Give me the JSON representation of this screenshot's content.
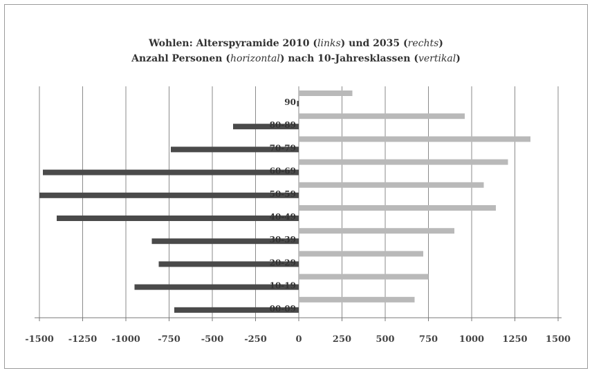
{
  "title": {
    "line1_a": "Wohlen: Alterspyramide 2010 (",
    "line1_b": "links",
    "line1_c": ") und 2035 (",
    "line1_d": "rechts",
    "line1_e": ")",
    "line2_a": "Anzahl Personen (",
    "line2_b": "horizontal",
    "line2_c": ") nach 10-Jahresklassen (",
    "line2_d": "vertikal",
    "line2_e": ")"
  },
  "colors": {
    "left_series": "#4a4a4a",
    "right_series": "#b9b9b9",
    "grid": "#8a8a8a"
  },
  "chart_data": {
    "type": "bar",
    "orientation": "horizontal",
    "categories": [
      "90",
      "80-89",
      "70-79",
      "60-69",
      "50-59",
      "40-49",
      "30-39",
      "20-29",
      "10-19",
      "00-09"
    ],
    "series": [
      {
        "values": [
          -10,
          -380,
          -740,
          -1480,
          -1500,
          -1400,
          -850,
          -810,
          -950,
          -720
        ]
      },
      {
        "values": [
          310,
          960,
          1340,
          1210,
          1070,
          1140,
          900,
          720,
          750,
          670
        ]
      }
    ],
    "xlim": [
      -1500,
      1500
    ],
    "xticks": [
      "-1500",
      "-1250",
      "-1000",
      "-750",
      "-500",
      "-250",
      "0",
      "250",
      "500",
      "750",
      "1000",
      "1250",
      "1500"
    ],
    "grid": true,
    "legend": "none"
  }
}
